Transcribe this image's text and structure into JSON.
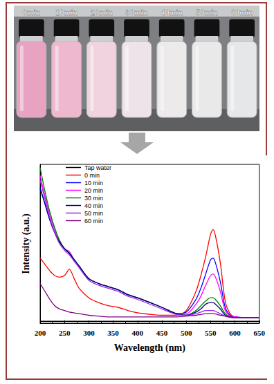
{
  "photo": {
    "labels": [
      "0min",
      "10min",
      "20min",
      "30min",
      "40min",
      "50min",
      "60min"
    ]
  },
  "chart_data": {
    "type": "line",
    "xlabel": "Wavelength (nm)",
    "ylabel": "Intensity (a.u.)",
    "x": [
      200,
      210,
      220,
      230,
      240,
      250,
      260,
      270,
      280,
      300,
      320,
      340,
      360,
      380,
      400,
      450,
      480,
      500,
      520,
      530,
      540,
      550,
      555,
      560,
      570,
      580,
      590,
      600,
      625,
      650
    ],
    "series": [
      {
        "name": "Tap water",
        "color": "#000000",
        "values": [
          0.012,
          0.012,
          0.012,
          0.012,
          0.012,
          0.012,
          0.012,
          0.012,
          0.012,
          0.012,
          0.012,
          0.012,
          0.012,
          0.012,
          0.012,
          0.012,
          0.012,
          0.012,
          0.012,
          0.012,
          0.012,
          0.012,
          0.012,
          0.012,
          0.012,
          0.012,
          0.012,
          0.012,
          0.012,
          0.012
        ]
      },
      {
        "name": "0 min",
        "color": "#ff0000",
        "values": [
          0.41,
          0.37,
          0.33,
          0.3,
          0.29,
          0.3,
          0.34,
          0.28,
          0.22,
          0.16,
          0.13,
          0.11,
          0.1,
          0.08,
          0.066,
          0.05,
          0.05,
          0.08,
          0.2,
          0.3,
          0.42,
          0.56,
          0.59,
          0.55,
          0.38,
          0.14,
          0.06,
          0.04,
          0.035,
          0.035
        ]
      },
      {
        "name": "10 min",
        "color": "#0000ff",
        "values": [
          0.85,
          0.75,
          0.65,
          0.57,
          0.51,
          0.47,
          0.44,
          0.4,
          0.36,
          0.28,
          0.25,
          0.23,
          0.21,
          0.18,
          0.16,
          0.1,
          0.06,
          0.07,
          0.15,
          0.22,
          0.31,
          0.4,
          0.41,
          0.38,
          0.26,
          0.1,
          0.05,
          0.04,
          0.035,
          0.035
        ]
      },
      {
        "name": "20 min",
        "color": "#ff00ff",
        "values": [
          0.93,
          0.8,
          0.68,
          0.59,
          0.52,
          0.47,
          0.45,
          0.4,
          0.36,
          0.28,
          0.25,
          0.23,
          0.21,
          0.18,
          0.16,
          0.1,
          0.06,
          0.06,
          0.12,
          0.17,
          0.24,
          0.3,
          0.31,
          0.29,
          0.2,
          0.08,
          0.045,
          0.04,
          0.035,
          0.035
        ]
      },
      {
        "name": "30 min",
        "color": "#008000",
        "values": [
          0.98,
          0.83,
          0.7,
          0.6,
          0.52,
          0.47,
          0.44,
          0.4,
          0.36,
          0.28,
          0.25,
          0.23,
          0.21,
          0.18,
          0.16,
          0.1,
          0.06,
          0.05,
          0.08,
          0.11,
          0.14,
          0.16,
          0.16,
          0.15,
          0.11,
          0.06,
          0.04,
          0.035,
          0.035,
          0.035
        ]
      },
      {
        "name": "40 min",
        "color": "#000080",
        "values": [
          0.85,
          0.75,
          0.65,
          0.57,
          0.51,
          0.47,
          0.44,
          0.4,
          0.36,
          0.28,
          0.25,
          0.23,
          0.21,
          0.18,
          0.16,
          0.1,
          0.06,
          0.05,
          0.07,
          0.09,
          0.12,
          0.13,
          0.13,
          0.12,
          0.09,
          0.05,
          0.04,
          0.035,
          0.035,
          0.035
        ]
      },
      {
        "name": "50 min",
        "color": "#a020f0",
        "values": [
          0.9,
          0.78,
          0.66,
          0.57,
          0.5,
          0.46,
          0.43,
          0.39,
          0.35,
          0.27,
          0.24,
          0.22,
          0.2,
          0.17,
          0.15,
          0.09,
          0.055,
          0.05,
          0.06,
          0.07,
          0.08,
          0.08,
          0.08,
          0.075,
          0.06,
          0.045,
          0.035,
          0.035,
          0.035,
          0.035
        ]
      },
      {
        "name": "60 min",
        "color": "#800080",
        "values": [
          0.25,
          0.2,
          0.15,
          0.11,
          0.09,
          0.08,
          0.07,
          0.065,
          0.06,
          0.05,
          0.045,
          0.04,
          0.04,
          0.04,
          0.04,
          0.04,
          0.04,
          0.045,
          0.05,
          0.055,
          0.06,
          0.06,
          0.06,
          0.058,
          0.05,
          0.045,
          0.04,
          0.035,
          0.035,
          0.035
        ]
      }
    ],
    "xlim": [
      200,
      650
    ],
    "xticks": [
      200,
      250,
      300,
      350,
      400,
      450,
      500,
      550,
      600,
      650
    ],
    "ylim": [
      0,
      1
    ],
    "tick_labels": "x",
    "grid": false,
    "legend": "upper left"
  }
}
